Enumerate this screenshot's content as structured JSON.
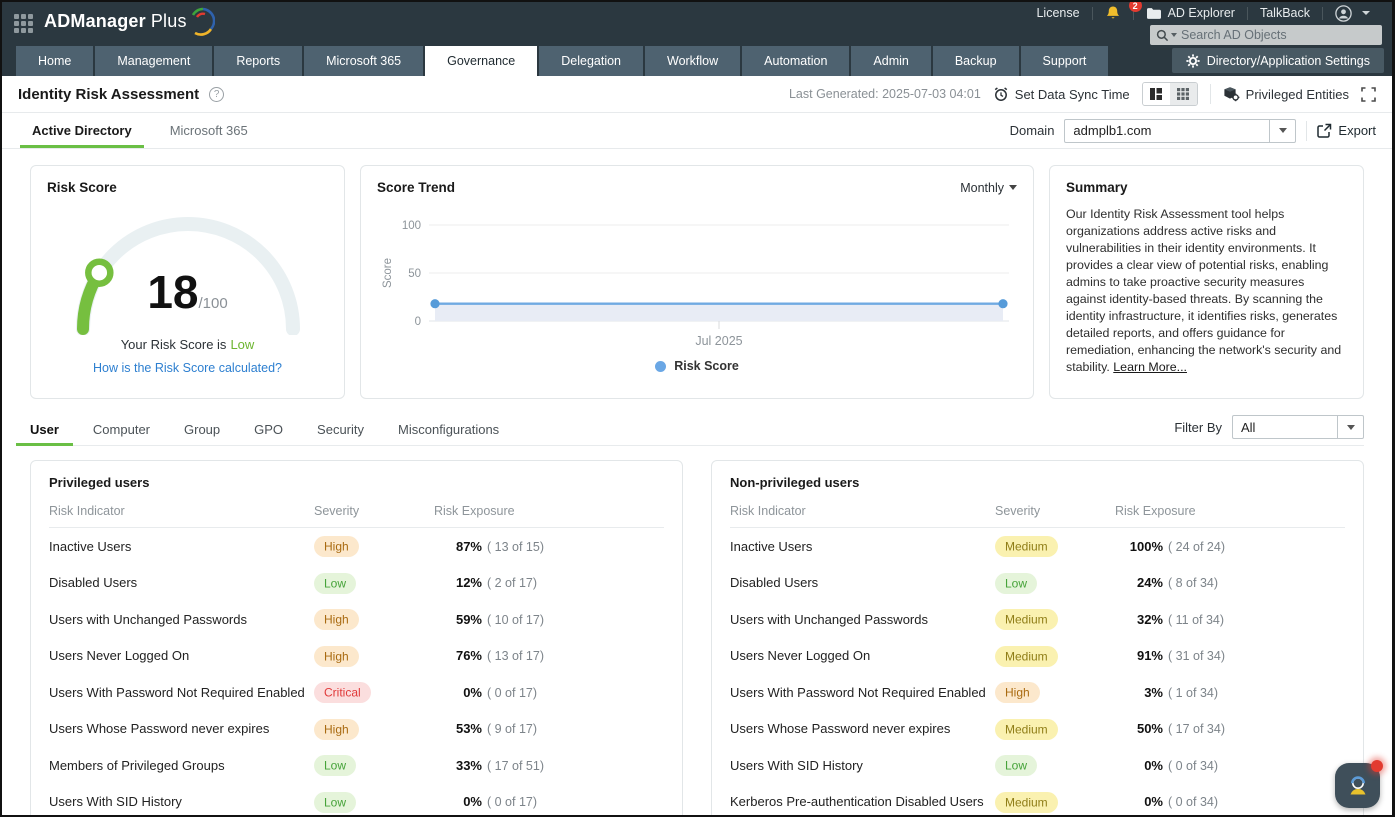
{
  "topbar": {
    "logo": "ADManager",
    "logo_suffix": "Plus",
    "license": "License",
    "notification_count": "2",
    "ad_explorer": "AD Explorer",
    "talkback": "TalkBack",
    "search_placeholder": "Search AD Objects"
  },
  "nav": {
    "tabs": [
      "Home",
      "Management",
      "Reports",
      "Microsoft 365",
      "Governance",
      "Delegation",
      "Workflow",
      "Automation",
      "Admin",
      "Backup",
      "Support"
    ],
    "active": "Governance",
    "settings_label": "Directory/Application Settings"
  },
  "page": {
    "title": "Identity Risk Assessment",
    "last_generated": "Last Generated: 2025-07-03 04:01",
    "set_data_sync_label": "Set Data Sync Time",
    "privileged_entities_label": "Privileged Entities"
  },
  "subtabs": {
    "tabs": [
      "Active Directory",
      "Microsoft 365"
    ],
    "active": "Active Directory",
    "domain_label": "Domain",
    "domain_value": "admplb1.com",
    "export_label": "Export"
  },
  "risk_score_card": {
    "title": "Risk Score",
    "score": "18",
    "max": "/100",
    "caption_prefix": "Your Risk Score is",
    "caption_level": "Low",
    "link": "How is the Risk Score calculated?",
    "accent_color": "#76bf3f"
  },
  "score_trend": {
    "title": "Score Trend",
    "period": "Monthly",
    "legend": "Risk Score",
    "chart_data": {
      "type": "line",
      "x": [
        "Jul 2025 start",
        "Jul 2025 end"
      ],
      "values": [
        18,
        18
      ],
      "ylabel": "Score",
      "yticks": [
        "100",
        "50",
        "0"
      ],
      "ylim": [
        0,
        100
      ],
      "xtick": "Jul 2025",
      "line_color": "#70aae2",
      "marker_color": "#569bd9",
      "area_color": "#e8ecf5",
      "grid": "on",
      "legend_position": "bottom"
    }
  },
  "summary_card": {
    "title": "Summary",
    "text": "Our Identity Risk Assessment tool helps organizations address active risks and vulnerabilities in their identity environments. It provides a clear view of potential risks, enabling admins to take proactive security measures against identity-based threats. By scanning the identity infrastructure, it identifies risks, generates detailed reports, and offers guidance for remediation, enhancing the network's security and stability. ",
    "link": "Learn More..."
  },
  "category_tabs": {
    "tabs": [
      "User",
      "Computer",
      "Group",
      "GPO",
      "Security",
      "Misconfigurations"
    ],
    "active": "User",
    "filter_label": "Filter By",
    "filter_value": "All"
  },
  "severity_colors": {
    "High": {
      "bg": "#fce8cc",
      "text": "#a96a10"
    },
    "Medium": {
      "bg": "#faf1b0",
      "text": "#8f7d17"
    },
    "Low": {
      "bg": "#e5f4da",
      "text": "#46a339"
    },
    "Critical": {
      "bg": "#fbdede",
      "text": "#e03a3a"
    }
  },
  "tables": {
    "privileged": {
      "title": "Privileged users",
      "columns": [
        "Risk Indicator",
        "Severity",
        "Risk Exposure"
      ],
      "rows": [
        {
          "indicator": "Inactive Users",
          "severity": "High",
          "percent": "87%",
          "count": "( 13 of 15)"
        },
        {
          "indicator": "Disabled Users",
          "severity": "Low",
          "percent": "12%",
          "count": "( 2 of 17)"
        },
        {
          "indicator": "Users with Unchanged Passwords",
          "severity": "High",
          "percent": "59%",
          "count": "( 10 of 17)"
        },
        {
          "indicator": "Users Never Logged On",
          "severity": "High",
          "percent": "76%",
          "count": "( 13 of 17)"
        },
        {
          "indicator": "Users With Password Not Required Enabled",
          "severity": "Critical",
          "percent": "0%",
          "count": "( 0 of 17)"
        },
        {
          "indicator": "Users Whose Password never expires",
          "severity": "High",
          "percent": "53%",
          "count": "( 9 of 17)"
        },
        {
          "indicator": "Members of Privileged Groups",
          "severity": "Low",
          "percent": "33%",
          "count": "( 17 of 51)"
        },
        {
          "indicator": "Users With SID History",
          "severity": "Low",
          "percent": "0%",
          "count": "( 0 of 17)"
        }
      ]
    },
    "nonprivileged": {
      "title": "Non-privileged users",
      "columns": [
        "Risk Indicator",
        "Severity",
        "Risk Exposure"
      ],
      "rows": [
        {
          "indicator": "Inactive Users",
          "severity": "Medium",
          "percent": "100%",
          "count": "( 24 of 24)"
        },
        {
          "indicator": "Disabled Users",
          "severity": "Low",
          "percent": "24%",
          "count": "( 8 of 34)"
        },
        {
          "indicator": "Users with Unchanged Passwords",
          "severity": "Medium",
          "percent": "32%",
          "count": "( 11 of 34)"
        },
        {
          "indicator": "Users Never Logged On",
          "severity": "Medium",
          "percent": "91%",
          "count": "( 31 of 34)"
        },
        {
          "indicator": "Users With Password Not Required Enabled",
          "severity": "High",
          "percent": "3%",
          "count": "( 1 of 34)"
        },
        {
          "indicator": "Users Whose Password never expires",
          "severity": "Medium",
          "percent": "50%",
          "count": "( 17 of 34)"
        },
        {
          "indicator": "Users With SID History",
          "severity": "Low",
          "percent": "0%",
          "count": "( 0 of 34)"
        },
        {
          "indicator": "Kerberos Pre-authentication Disabled Users",
          "severity": "Medium",
          "percent": "0%",
          "count": "( 0 of 34)"
        }
      ]
    }
  }
}
